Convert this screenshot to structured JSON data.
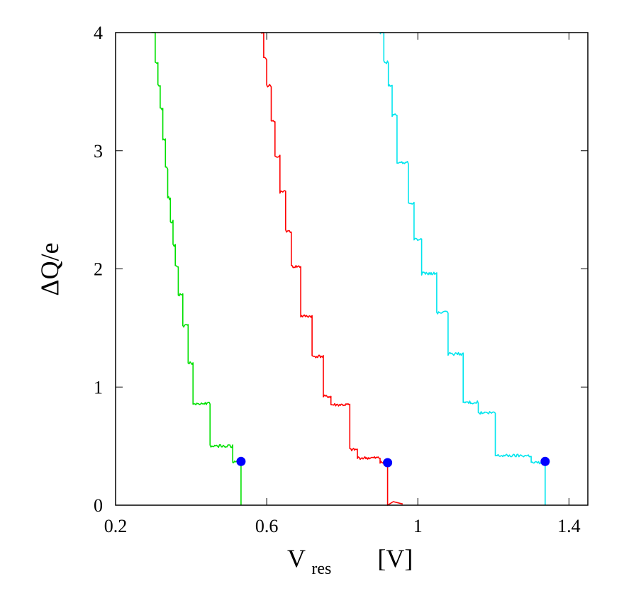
{
  "chart_data": {
    "type": "line",
    "title": "",
    "xlabel": {
      "main": "V",
      "subscript": "res",
      "unit": "[V]"
    },
    "ylabel": "ΔQ/e",
    "xlim": [
      0.2,
      1.45
    ],
    "ylim": [
      0,
      4
    ],
    "xticks": [
      0.2,
      0.6,
      1.0,
      1.4
    ],
    "xtick_labels": [
      "0.2",
      "0.6",
      "1",
      "1.4"
    ],
    "yticks": [
      0,
      1,
      2,
      3,
      4
    ],
    "ytick_labels": [
      "0",
      "1",
      "2",
      "3",
      "4"
    ],
    "grid": false,
    "series": [
      {
        "name": "green",
        "color": "#00e000",
        "steps": [
          [
            0.295,
            4.0
          ],
          [
            0.305,
            3.75
          ],
          [
            0.312,
            3.55
          ],
          [
            0.318,
            3.35
          ],
          [
            0.325,
            3.1
          ],
          [
            0.332,
            2.85
          ],
          [
            0.338,
            2.6
          ],
          [
            0.345,
            2.4
          ],
          [
            0.352,
            2.2
          ],
          [
            0.358,
            2.02
          ],
          [
            0.366,
            1.78
          ],
          [
            0.378,
            1.52
          ],
          [
            0.392,
            1.2
          ],
          [
            0.405,
            0.86
          ],
          [
            0.45,
            0.5
          ],
          [
            0.51,
            0.37
          ]
        ],
        "vertical_drop_x": 0.532
      },
      {
        "name": "red",
        "color": "#ff0000",
        "steps": [
          [
            0.585,
            4.0
          ],
          [
            0.592,
            3.78
          ],
          [
            0.6,
            3.55
          ],
          [
            0.612,
            3.25
          ],
          [
            0.622,
            2.95
          ],
          [
            0.635,
            2.65
          ],
          [
            0.65,
            2.32
          ],
          [
            0.665,
            2.02
          ],
          [
            0.69,
            1.6
          ],
          [
            0.72,
            1.26
          ],
          [
            0.75,
            0.92
          ],
          [
            0.77,
            0.85
          ],
          [
            0.82,
            0.47
          ],
          [
            0.84,
            0.4
          ],
          [
            0.9,
            0.36
          ]
        ],
        "vertical_drop_x": 0.92,
        "tail": [
          [
            0.92,
            0.0
          ],
          [
            0.935,
            0.03
          ],
          [
            0.96,
            0.01
          ]
        ]
      },
      {
        "name": "cyan",
        "color": "#00e5ee",
        "steps": [
          [
            0.9,
            4.0
          ],
          [
            0.91,
            3.75
          ],
          [
            0.922,
            3.55
          ],
          [
            0.932,
            3.3
          ],
          [
            0.945,
            2.9
          ],
          [
            0.975,
            2.56
          ],
          [
            0.99,
            2.25
          ],
          [
            1.01,
            1.96
          ],
          [
            1.05,
            1.63
          ],
          [
            1.08,
            1.28
          ],
          [
            1.12,
            0.87
          ],
          [
            1.16,
            0.78
          ],
          [
            1.205,
            0.42
          ],
          [
            1.3,
            0.36
          ]
        ],
        "vertical_drop_x": 1.337
      }
    ],
    "markers": [
      {
        "x": 0.532,
        "y": 0.37,
        "color": "#0000ff"
      },
      {
        "x": 0.92,
        "y": 0.36,
        "color": "#0000ff"
      },
      {
        "x": 1.337,
        "y": 0.37,
        "color": "#0000ff"
      }
    ]
  }
}
